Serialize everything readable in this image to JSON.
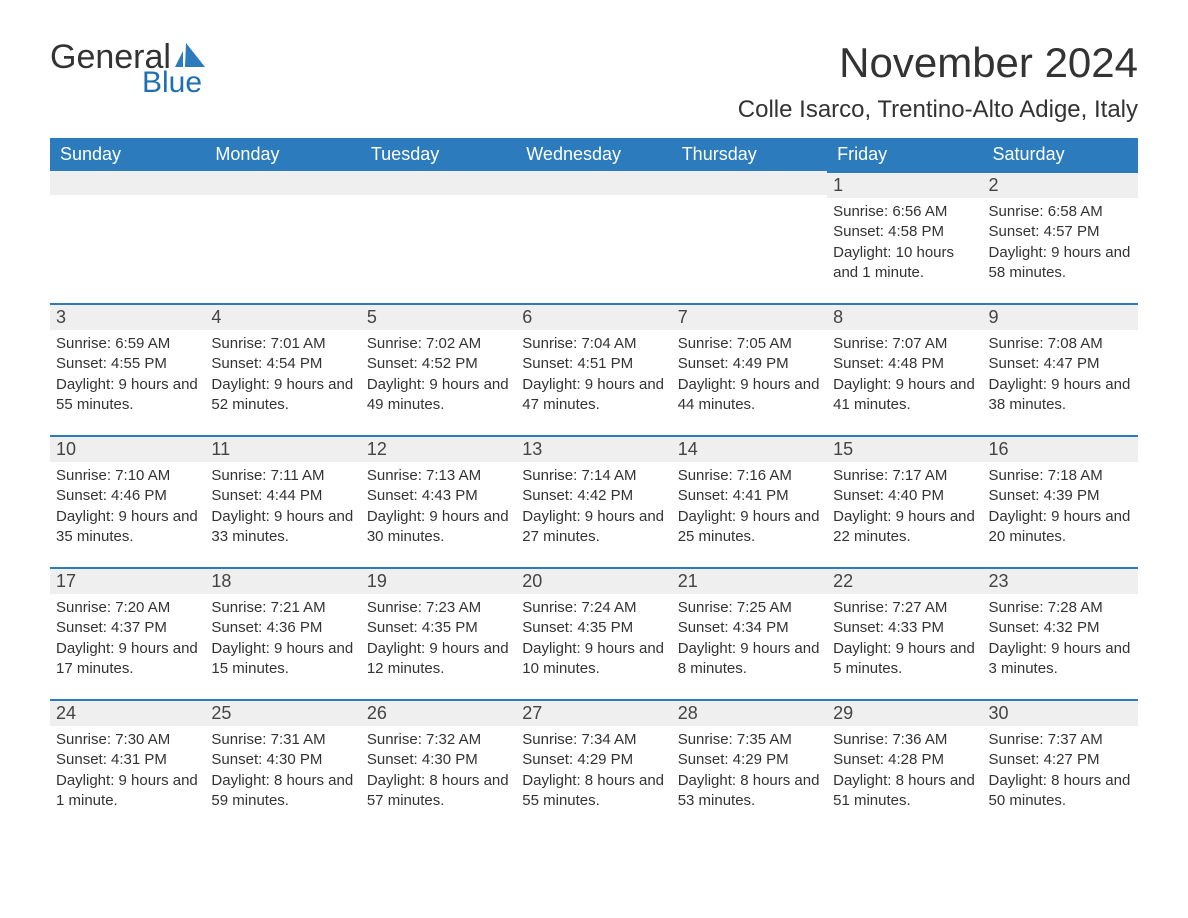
{
  "logo": {
    "text_general": "General",
    "text_blue": "Blue"
  },
  "header": {
    "month_title": "November 2024",
    "location": "Colle Isarco, Trentino-Alto Adige, Italy"
  },
  "colors": {
    "header_bg": "#2b7bbd",
    "header_text": "#ffffff",
    "day_stripe_bg": "#efefef",
    "day_stripe_border": "#2b7bbd",
    "body_text": "#333333",
    "logo_blue": "#1f6fb2"
  },
  "weekdays": [
    "Sunday",
    "Monday",
    "Tuesday",
    "Wednesday",
    "Thursday",
    "Friday",
    "Saturday"
  ],
  "labels": {
    "sunrise": "Sunrise:",
    "sunset": "Sunset:",
    "daylight": "Daylight:"
  },
  "weeks": [
    [
      null,
      null,
      null,
      null,
      null,
      {
        "day": "1",
        "sunrise": "6:56 AM",
        "sunset": "4:58 PM",
        "daylight": "10 hours and 1 minute."
      },
      {
        "day": "2",
        "sunrise": "6:58 AM",
        "sunset": "4:57 PM",
        "daylight": "9 hours and 58 minutes."
      }
    ],
    [
      {
        "day": "3",
        "sunrise": "6:59 AM",
        "sunset": "4:55 PM",
        "daylight": "9 hours and 55 minutes."
      },
      {
        "day": "4",
        "sunrise": "7:01 AM",
        "sunset": "4:54 PM",
        "daylight": "9 hours and 52 minutes."
      },
      {
        "day": "5",
        "sunrise": "7:02 AM",
        "sunset": "4:52 PM",
        "daylight": "9 hours and 49 minutes."
      },
      {
        "day": "6",
        "sunrise": "7:04 AM",
        "sunset": "4:51 PM",
        "daylight": "9 hours and 47 minutes."
      },
      {
        "day": "7",
        "sunrise": "7:05 AM",
        "sunset": "4:49 PM",
        "daylight": "9 hours and 44 minutes."
      },
      {
        "day": "8",
        "sunrise": "7:07 AM",
        "sunset": "4:48 PM",
        "daylight": "9 hours and 41 minutes."
      },
      {
        "day": "9",
        "sunrise": "7:08 AM",
        "sunset": "4:47 PM",
        "daylight": "9 hours and 38 minutes."
      }
    ],
    [
      {
        "day": "10",
        "sunrise": "7:10 AM",
        "sunset": "4:46 PM",
        "daylight": "9 hours and 35 minutes."
      },
      {
        "day": "11",
        "sunrise": "7:11 AM",
        "sunset": "4:44 PM",
        "daylight": "9 hours and 33 minutes."
      },
      {
        "day": "12",
        "sunrise": "7:13 AM",
        "sunset": "4:43 PM",
        "daylight": "9 hours and 30 minutes."
      },
      {
        "day": "13",
        "sunrise": "7:14 AM",
        "sunset": "4:42 PM",
        "daylight": "9 hours and 27 minutes."
      },
      {
        "day": "14",
        "sunrise": "7:16 AM",
        "sunset": "4:41 PM",
        "daylight": "9 hours and 25 minutes."
      },
      {
        "day": "15",
        "sunrise": "7:17 AM",
        "sunset": "4:40 PM",
        "daylight": "9 hours and 22 minutes."
      },
      {
        "day": "16",
        "sunrise": "7:18 AM",
        "sunset": "4:39 PM",
        "daylight": "9 hours and 20 minutes."
      }
    ],
    [
      {
        "day": "17",
        "sunrise": "7:20 AM",
        "sunset": "4:37 PM",
        "daylight": "9 hours and 17 minutes."
      },
      {
        "day": "18",
        "sunrise": "7:21 AM",
        "sunset": "4:36 PM",
        "daylight": "9 hours and 15 minutes."
      },
      {
        "day": "19",
        "sunrise": "7:23 AM",
        "sunset": "4:35 PM",
        "daylight": "9 hours and 12 minutes."
      },
      {
        "day": "20",
        "sunrise": "7:24 AM",
        "sunset": "4:35 PM",
        "daylight": "9 hours and 10 minutes."
      },
      {
        "day": "21",
        "sunrise": "7:25 AM",
        "sunset": "4:34 PM",
        "daylight": "9 hours and 8 minutes."
      },
      {
        "day": "22",
        "sunrise": "7:27 AM",
        "sunset": "4:33 PM",
        "daylight": "9 hours and 5 minutes."
      },
      {
        "day": "23",
        "sunrise": "7:28 AM",
        "sunset": "4:32 PM",
        "daylight": "9 hours and 3 minutes."
      }
    ],
    [
      {
        "day": "24",
        "sunrise": "7:30 AM",
        "sunset": "4:31 PM",
        "daylight": "9 hours and 1 minute."
      },
      {
        "day": "25",
        "sunrise": "7:31 AM",
        "sunset": "4:30 PM",
        "daylight": "8 hours and 59 minutes."
      },
      {
        "day": "26",
        "sunrise": "7:32 AM",
        "sunset": "4:30 PM",
        "daylight": "8 hours and 57 minutes."
      },
      {
        "day": "27",
        "sunrise": "7:34 AM",
        "sunset": "4:29 PM",
        "daylight": "8 hours and 55 minutes."
      },
      {
        "day": "28",
        "sunrise": "7:35 AM",
        "sunset": "4:29 PM",
        "daylight": "8 hours and 53 minutes."
      },
      {
        "day": "29",
        "sunrise": "7:36 AM",
        "sunset": "4:28 PM",
        "daylight": "8 hours and 51 minutes."
      },
      {
        "day": "30",
        "sunrise": "7:37 AM",
        "sunset": "4:27 PM",
        "daylight": "8 hours and 50 minutes."
      }
    ]
  ]
}
